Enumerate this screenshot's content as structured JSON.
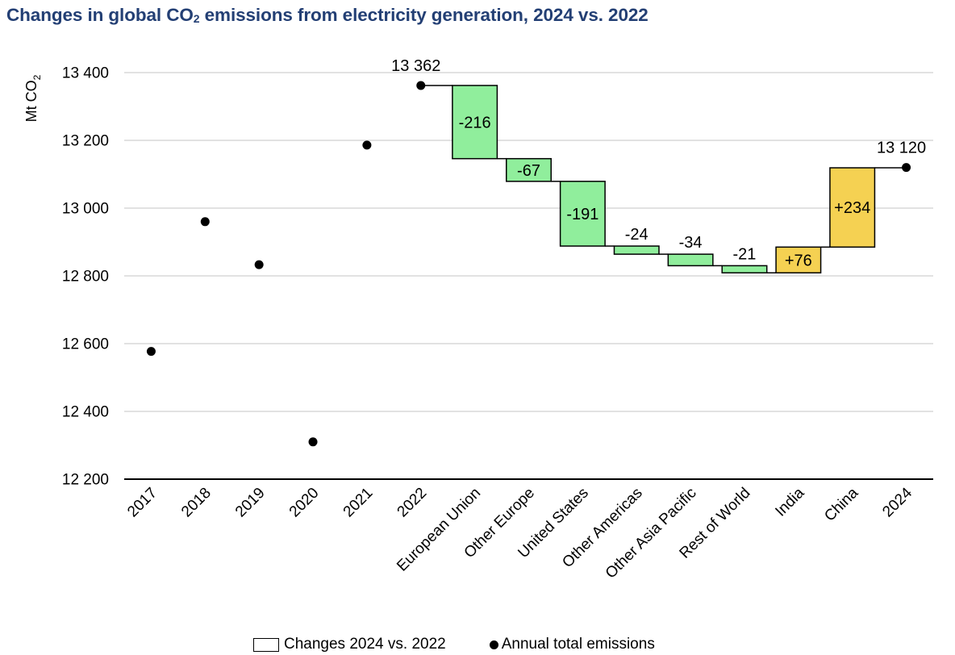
{
  "chart_data": {
    "type": "waterfall",
    "title_main": "Changes in global CO",
    "title_sub": "2",
    "title_rest": " emissions from electricity generation, 2024 vs. 2022",
    "title": "Changes in global CO2 emissions from electricity generation, 2024 vs. 2022",
    "ylabel_main": "Mt CO",
    "ylabel_sub": "2",
    "ylabel": "Mt CO2",
    "ylim": [
      12200,
      13400
    ],
    "yticks": [
      12200,
      12400,
      12600,
      12800,
      13000,
      13200,
      13400
    ],
    "ytick_labels": [
      "12 200",
      "12 400",
      "12 600",
      "12 800",
      "13 000",
      "13 200",
      "13 400"
    ],
    "grid": true,
    "categories": [
      "2017",
      "2018",
      "2019",
      "2020",
      "2021",
      "2022",
      "European Union",
      "Other Europe",
      "United States",
      "Other Americas",
      "Other Asia Pacific",
      "Rest of World",
      "India",
      "China",
      "2024"
    ],
    "annual_totals": [
      {
        "category": "2017",
        "value": 12577
      },
      {
        "category": "2018",
        "value": 12960
      },
      {
        "category": "2019",
        "value": 12833
      },
      {
        "category": "2020",
        "value": 12310
      },
      {
        "category": "2021",
        "value": 13186
      },
      {
        "category": "2022",
        "value": 13362,
        "label": "13 362"
      },
      {
        "category": "2024",
        "value": 13120,
        "label": "13 120"
      }
    ],
    "changes": [
      {
        "category": "European Union",
        "value": -216,
        "label": "-216",
        "label_position": "inside"
      },
      {
        "category": "Other Europe",
        "value": -67,
        "label": "-67",
        "label_position": "inside"
      },
      {
        "category": "United States",
        "value": -191,
        "label": "-191",
        "label_position": "inside"
      },
      {
        "category": "Other Americas",
        "value": -24,
        "label": "-24",
        "label_position": "above"
      },
      {
        "category": "Other Asia Pacific",
        "value": -34,
        "label": "-34",
        "label_position": "above"
      },
      {
        "category": "Rest of World",
        "value": -21,
        "label": "-21",
        "label_position": "above"
      },
      {
        "category": "India",
        "value": 76,
        "label": "+76",
        "label_position": "inside"
      },
      {
        "category": "China",
        "value": 234,
        "label": "+234",
        "label_position": "inside"
      }
    ],
    "colors": {
      "decrease": "#90ee9c",
      "increase": "#f5d152",
      "bar_outline": "#000000",
      "dot": "#000000",
      "grid": "#d9d9d9",
      "title": "#233f74"
    },
    "legend": {
      "position": "bottom",
      "entries": [
        {
          "label": "Changes 2024 vs. 2022",
          "marker": "box"
        },
        {
          "label": "Annual total emissions",
          "marker": "dot"
        }
      ]
    }
  }
}
